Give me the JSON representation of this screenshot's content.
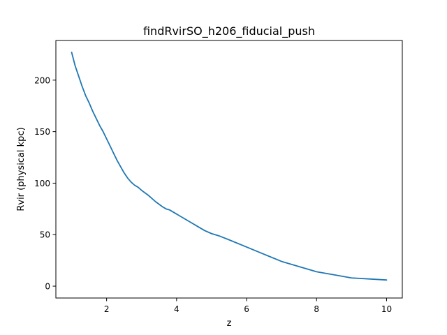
{
  "chart_data": {
    "type": "line",
    "title": "findRvirSO_h206_fiducial_push",
    "xlabel": "z",
    "ylabel": "Rvir (physical kpc)",
    "xlim": [
      0.55,
      10.45
    ],
    "ylim": [
      -11.5,
      238.5
    ],
    "xticks": [
      2,
      4,
      6,
      8,
      10
    ],
    "yticks": [
      0,
      50,
      100,
      150,
      200
    ],
    "grid": false,
    "legend": "none",
    "series": [
      {
        "color": "#1f77b4",
        "x": [
          1.0,
          1.1,
          1.2,
          1.3,
          1.4,
          1.5,
          1.6,
          1.7,
          1.8,
          1.9,
          2.0,
          2.1,
          2.2,
          2.3,
          2.4,
          2.5,
          2.6,
          2.7,
          2.8,
          2.9,
          3.0,
          3.2,
          3.4,
          3.6,
          3.7,
          3.8,
          4.0,
          4.2,
          4.4,
          4.6,
          4.8,
          5.0,
          5.2,
          5.5,
          6.0,
          6.5,
          7.0,
          7.5,
          8.0,
          8.5,
          9.0,
          9.5,
          10.0
        ],
        "y": [
          227,
          214,
          204,
          194,
          185,
          178,
          170,
          163,
          156,
          150,
          143,
          136,
          129,
          122,
          116,
          110,
          105,
          101,
          98,
          96,
          93,
          88,
          82,
          77,
          75,
          74,
          70,
          66,
          62,
          58,
          54,
          51,
          49,
          45,
          38,
          31,
          24,
          19,
          14,
          11,
          8,
          7,
          6
        ]
      }
    ]
  }
}
